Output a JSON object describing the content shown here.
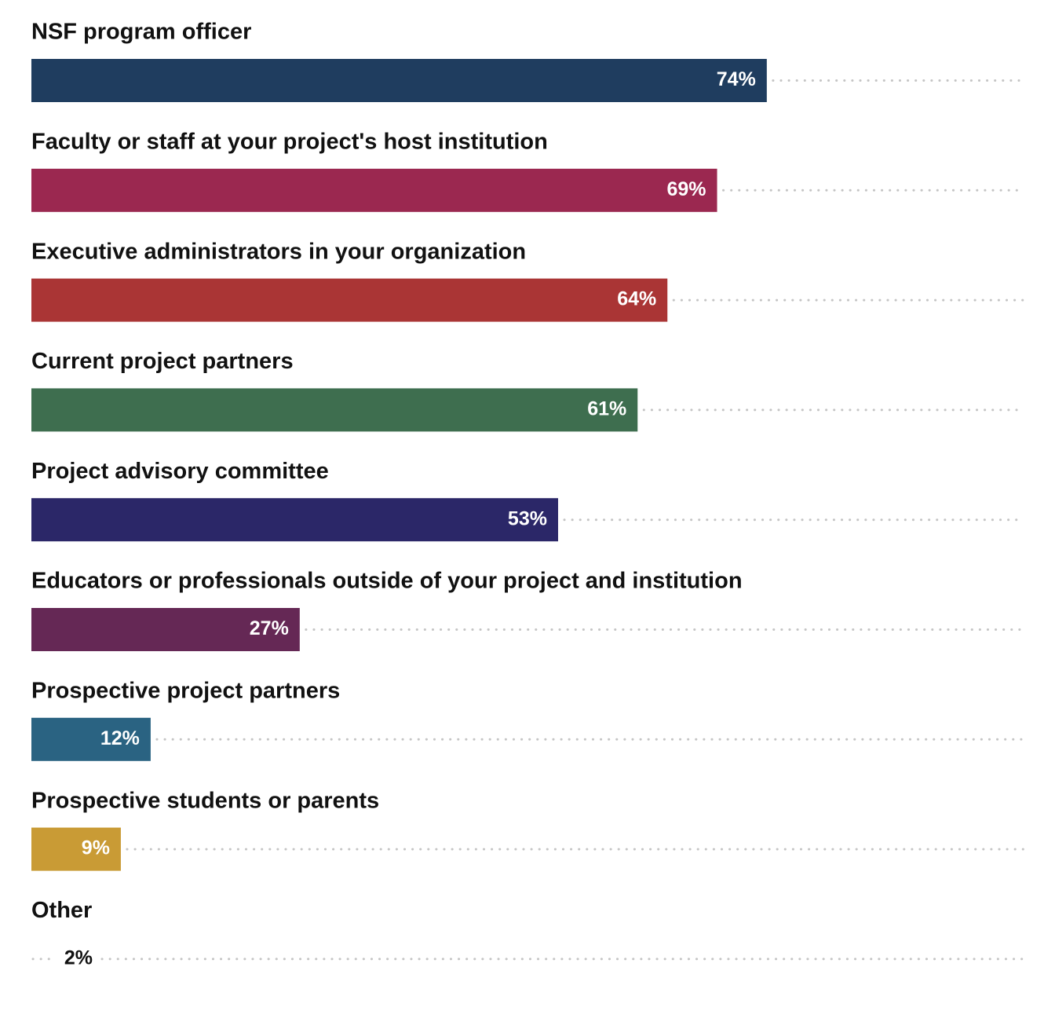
{
  "chart_data": {
    "type": "bar",
    "orientation": "horizontal",
    "categories": [
      "NSF program officer",
      "Faculty or staff at your project's host institution",
      "Executive administrators in your organization",
      "Current project partners",
      "Project advisory committee",
      "Educators or professionals outside of your project and institution",
      "Prospective project partners",
      "Prospective students or parents",
      "Other"
    ],
    "values": [
      74,
      69,
      64,
      61,
      53,
      27,
      12,
      9,
      2
    ],
    "value_labels": [
      "74%",
      "69%",
      "64%",
      "61%",
      "53%",
      "27%",
      "12%",
      "9%",
      "2%"
    ],
    "colors": [
      "#1f3d5f",
      "#9b2850",
      "#aa3535",
      "#3e6e4f",
      "#2b2768",
      "#652855",
      "#2a6382",
      "#c99b35",
      "#ffffff"
    ],
    "unit": "%",
    "xlim": [
      0,
      100
    ],
    "grid": false,
    "legend": "none",
    "value_label_placement": "inside-end",
    "trailing_leader": "dotted"
  }
}
